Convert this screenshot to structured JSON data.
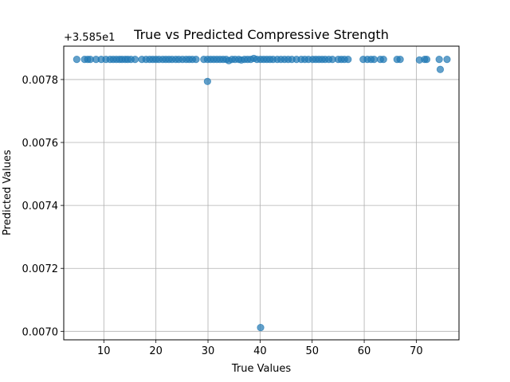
{
  "chart_data": {
    "type": "scatter",
    "title": "True vs Predicted Compressive Strength",
    "xlabel": "True Values",
    "ylabel": "Predicted Values",
    "y_offset_label": "+3.585e1",
    "xlim": [
      2.3,
      78.2
    ],
    "ylim": [
      0.006973,
      0.007906
    ],
    "xticks": [
      10,
      20,
      30,
      40,
      50,
      60,
      70
    ],
    "xtick_labels": [
      "10",
      "20",
      "30",
      "40",
      "50",
      "60",
      "70"
    ],
    "yticks": [
      0.007,
      0.0072,
      0.0074,
      0.0076,
      0.0078
    ],
    "ytick_labels": [
      "0.0070",
      "0.0072",
      "0.0074",
      "0.0076",
      "0.0078"
    ],
    "grid": true,
    "marker_color": "#1f77b4",
    "marker_alpha": 0.7,
    "points": {
      "x": [
        4.8,
        6.3,
        6.9,
        7.4,
        8.5,
        9.5,
        10.4,
        11.2,
        11.8,
        12.4,
        13.0,
        13.5,
        14.1,
        14.6,
        15.2,
        16.0,
        17.3,
        18.1,
        18.8,
        19.4,
        20.0,
        20.6,
        21.3,
        21.9,
        22.5,
        23.1,
        23.8,
        24.4,
        25.1,
        25.8,
        26.4,
        27.0,
        27.7,
        29.2,
        29.9,
        30.5,
        31.1,
        31.7,
        32.3,
        32.9,
        33.5,
        34.0,
        34.6,
        35.2,
        35.9,
        36.4,
        37.0,
        37.6,
        38.2,
        38.8,
        39.4,
        40.1,
        40.7,
        41.3,
        41.9,
        42.5,
        43.3,
        44.0,
        44.7,
        45.4,
        46.1,
        47.0,
        47.9,
        48.6,
        49.3,
        50.1,
        50.7,
        51.3,
        51.9,
        52.5,
        53.2,
        53.9,
        55.0,
        55.6,
        56.2,
        56.9,
        59.8,
        60.6,
        61.3,
        61.9,
        63.1,
        63.7,
        66.3,
        66.9,
        70.6,
        71.6,
        72.0,
        74.4,
        75.9,
        29.9,
        74.6,
        40.1
      ],
      "y": [
        0.007864,
        0.007864,
        0.007864,
        0.007864,
        0.007864,
        0.007864,
        0.007864,
        0.007864,
        0.007864,
        0.007864,
        0.007864,
        0.007864,
        0.007864,
        0.007864,
        0.007864,
        0.007864,
        0.007864,
        0.007864,
        0.007864,
        0.007864,
        0.007864,
        0.007864,
        0.007864,
        0.007864,
        0.007864,
        0.007864,
        0.007864,
        0.007864,
        0.007864,
        0.007864,
        0.007864,
        0.007864,
        0.007864,
        0.007864,
        0.007864,
        0.007864,
        0.007864,
        0.007864,
        0.007864,
        0.007864,
        0.007864,
        0.00786,
        0.007864,
        0.007864,
        0.007864,
        0.007862,
        0.007864,
        0.007864,
        0.007864,
        0.007867,
        0.007864,
        0.007864,
        0.007864,
        0.007864,
        0.007864,
        0.007864,
        0.007864,
        0.007864,
        0.007864,
        0.007864,
        0.007864,
        0.007864,
        0.007864,
        0.007864,
        0.007864,
        0.007864,
        0.007864,
        0.007864,
        0.007864,
        0.007864,
        0.007864,
        0.007864,
        0.007864,
        0.007864,
        0.007864,
        0.007864,
        0.007864,
        0.007864,
        0.007864,
        0.007864,
        0.007864,
        0.007864,
        0.007864,
        0.007864,
        0.007862,
        0.007864,
        0.007864,
        0.007864,
        0.007864,
        0.007794,
        0.007832,
        0.007012
      ]
    }
  }
}
